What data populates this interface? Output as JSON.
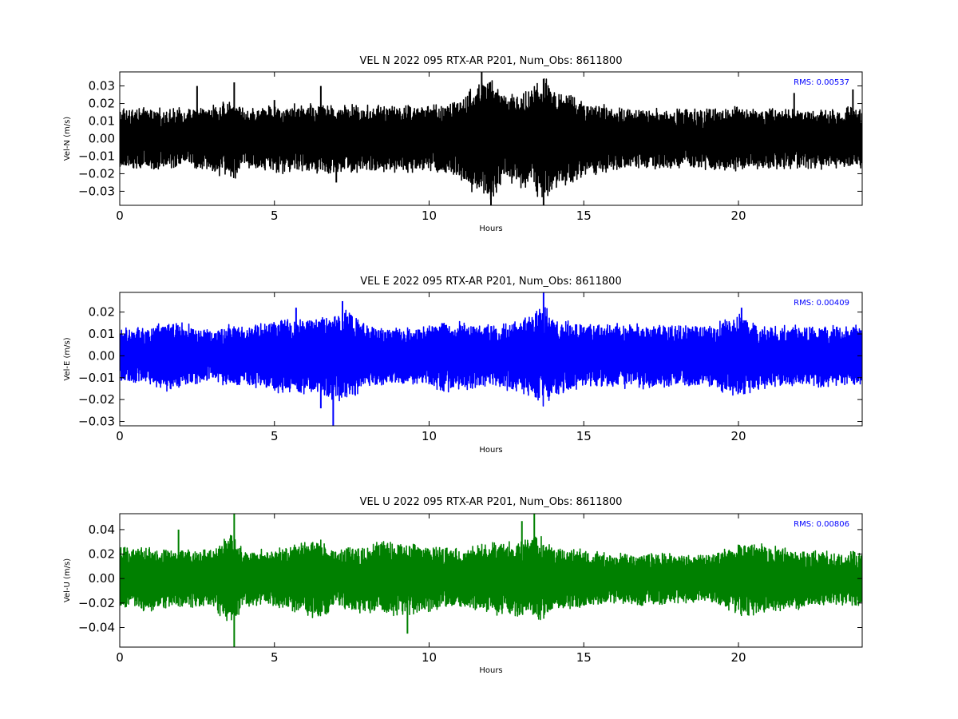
{
  "chart_data": [
    {
      "type": "line",
      "title": "VEL N 2022 095 RTX-AR  P201, Num_Obs: 8611800",
      "xlabel": "Hours",
      "ylabel": "Vel-N (m/s)",
      "xlim": [
        0,
        24
      ],
      "ylim": [
        -0.038,
        0.038
      ],
      "xticks": [
        0,
        5,
        10,
        15,
        20
      ],
      "xtick_labels": [
        "0",
        "5",
        "10",
        "15",
        "20"
      ],
      "yticks": [
        -0.03,
        -0.02,
        -0.01,
        0.0,
        0.01,
        0.02,
        0.03
      ],
      "ytick_labels": [
        "−0.03",
        "−0.02",
        "−0.01",
        "0.00",
        "0.01",
        "0.02",
        "0.03"
      ],
      "annotation": "RMS:  0.00537",
      "grid": false,
      "series": [
        {
          "color": "#000000",
          "rms": 0.00537,
          "envelope": {
            "hours": [
              0,
              1,
              2,
              3,
              3.7,
              4,
              5,
              6,
              7,
              8,
              9,
              10,
              11,
              11.5,
              12,
              12.5,
              13,
              13.7,
              14,
              15,
              16,
              17,
              18,
              19,
              20,
              21,
              22,
              23,
              24
            ],
            "amplitude": [
              0.017,
              0.016,
              0.016,
              0.018,
              0.022,
              0.016,
              0.018,
              0.019,
              0.019,
              0.018,
              0.018,
              0.018,
              0.022,
              0.03,
              0.035,
              0.022,
              0.026,
              0.033,
              0.028,
              0.021,
              0.017,
              0.016,
              0.016,
              0.017,
              0.017,
              0.016,
              0.016,
              0.016,
              0.017
            ]
          },
          "spikes": [
            {
              "hour": 2.5,
              "value": 0.03
            },
            {
              "hour": 3.7,
              "value": 0.032
            },
            {
              "hour": 5.0,
              "value": 0.022
            },
            {
              "hour": 6.5,
              "value": 0.03
            },
            {
              "hour": 11.7,
              "value": 0.038
            },
            {
              "hour": 12.0,
              "value": -0.038
            },
            {
              "hour": 13.7,
              "value": -0.038
            },
            {
              "hour": 13.7,
              "value": 0.034
            },
            {
              "hour": 21.8,
              "value": 0.026
            },
            {
              "hour": 23.7,
              "value": 0.028
            },
            {
              "hour": 7.0,
              "value": -0.025
            }
          ]
        }
      ]
    },
    {
      "type": "line",
      "title": "VEL E 2022 095 RTX-AR  P201, Num_Obs: 8611800",
      "xlabel": "Hours",
      "ylabel": "Vel-E (m/s)",
      "xlim": [
        0,
        24
      ],
      "ylim": [
        -0.032,
        0.029
      ],
      "xticks": [
        0,
        5,
        10,
        15,
        20
      ],
      "xtick_labels": [
        "0",
        "5",
        "10",
        "15",
        "20"
      ],
      "yticks": [
        -0.03,
        -0.02,
        -0.01,
        0.0,
        0.01,
        0.02
      ],
      "ytick_labels": [
        "−0.03",
        "−0.02",
        "−0.01",
        "0.00",
        "0.01",
        "0.02"
      ],
      "annotation": "RMS:  0.00409",
      "grid": false,
      "series": [
        {
          "color": "#0000ff",
          "rms": 0.00409,
          "envelope": {
            "hours": [
              0,
              1,
              1.5,
              2,
              3,
              3.7,
              4,
              5,
              6,
              7,
              7.5,
              8,
              9,
              10,
              10.5,
              11,
              12,
              13,
              13.7,
              14,
              15,
              16,
              17,
              18,
              19,
              20,
              21,
              22,
              23,
              24
            ],
            "amplitude": [
              0.012,
              0.012,
              0.015,
              0.014,
              0.011,
              0.014,
              0.012,
              0.016,
              0.016,
              0.019,
              0.02,
              0.013,
              0.012,
              0.013,
              0.016,
              0.015,
              0.013,
              0.016,
              0.023,
              0.017,
              0.014,
              0.014,
              0.014,
              0.013,
              0.013,
              0.018,
              0.013,
              0.013,
              0.013,
              0.013
            ]
          },
          "spikes": [
            {
              "hour": 6.9,
              "value": -0.032
            },
            {
              "hour": 7.2,
              "value": 0.025
            },
            {
              "hour": 13.7,
              "value": 0.029
            },
            {
              "hour": 6.5,
              "value": -0.024
            },
            {
              "hour": 20.1,
              "value": 0.022
            },
            {
              "hour": 5.7,
              "value": 0.022
            }
          ]
        }
      ]
    },
    {
      "type": "line",
      "title": "VEL U 2022 095 RTX-AR  P201, Num_Obs: 8611800",
      "xlabel": "Hours",
      "ylabel": "Vel-U (m/s)",
      "xlim": [
        0,
        24
      ],
      "ylim": [
        -0.056,
        0.053
      ],
      "xticks": [
        0,
        5,
        10,
        15,
        20
      ],
      "xtick_labels": [
        "0",
        "5",
        "10",
        "15",
        "20"
      ],
      "yticks": [
        -0.04,
        -0.02,
        0.0,
        0.02,
        0.04
      ],
      "ytick_labels": [
        "−0.04",
        "−0.02",
        "0.00",
        "0.02",
        "0.04"
      ],
      "annotation": "RMS:  0.00806",
      "grid": false,
      "series": [
        {
          "color": "#008000",
          "rms": 0.00806,
          "envelope": {
            "hours": [
              0,
              1,
              2,
              3,
              3.6,
              4,
              5,
              6,
              6.5,
              7,
              8,
              9,
              10,
              11,
              12,
              13,
              13.5,
              14,
              15,
              16,
              17,
              18,
              19,
              20,
              20.5,
              21,
              22,
              23,
              24
            ],
            "amplitude": [
              0.025,
              0.025,
              0.022,
              0.024,
              0.035,
              0.022,
              0.022,
              0.028,
              0.032,
              0.022,
              0.027,
              0.03,
              0.026,
              0.022,
              0.028,
              0.03,
              0.034,
              0.025,
              0.022,
              0.019,
              0.021,
              0.019,
              0.018,
              0.028,
              0.03,
              0.025,
              0.023,
              0.02,
              0.021
            ]
          },
          "spikes": [
            {
              "hour": 3.7,
              "value": 0.053
            },
            {
              "hour": 3.7,
              "value": -0.056
            },
            {
              "hour": 13.4,
              "value": 0.053
            },
            {
              "hour": 1.9,
              "value": 0.04
            },
            {
              "hour": 9.3,
              "value": -0.045
            },
            {
              "hour": 13.0,
              "value": 0.047
            }
          ]
        }
      ]
    }
  ]
}
